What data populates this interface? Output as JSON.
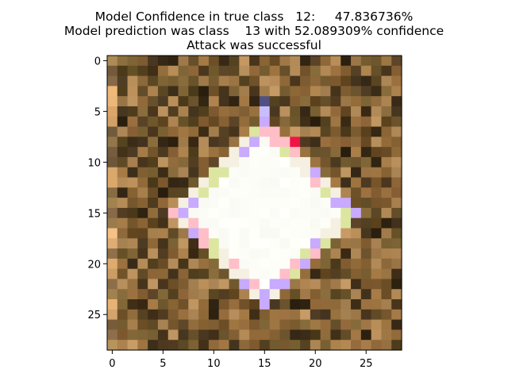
{
  "title": {
    "line1": "Model Confidence in true class   12:     47.836736%",
    "line2": "Model prediction was class    13 with 52.089309% confidence",
    "line3": "Attack was successful"
  },
  "image": {
    "description_grid_size": 29,
    "subject": "adversarial traffic sign image (white diamond sign on brown background)",
    "colors": {
      "sign": "#fffdf6",
      "background_dark": "#3a2a10",
      "background_mid": "#8a6a3a",
      "background_light": "#b58a55",
      "accent_pink": "#ff5070",
      "accent_purple": "#c0a0ff"
    }
  },
  "axes": {
    "x_ticks": [
      "0",
      "5",
      "10",
      "15",
      "20",
      "25"
    ],
    "y_ticks": [
      "0",
      "5",
      "10",
      "15",
      "20",
      "25"
    ]
  }
}
